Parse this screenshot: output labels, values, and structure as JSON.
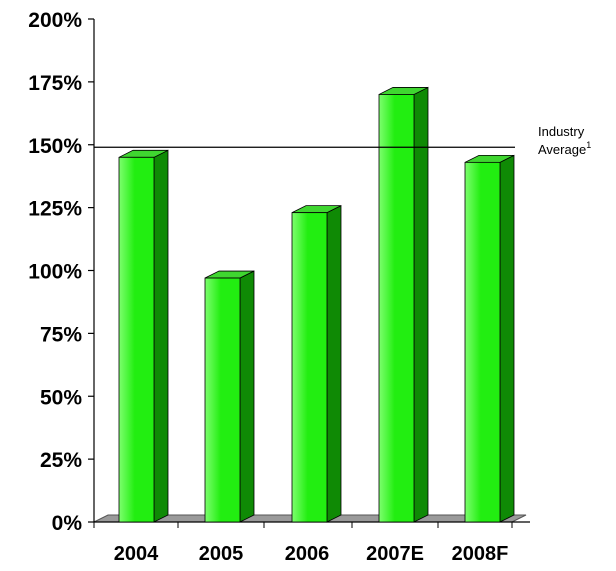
{
  "chart_data": {
    "type": "bar",
    "categories": [
      "2004",
      "2005",
      "2006",
      "2007E",
      "2008F"
    ],
    "values": [
      145,
      97,
      123,
      170,
      143
    ],
    "ylim": [
      0,
      200
    ],
    "yticks": [
      0,
      25,
      50,
      75,
      100,
      125,
      150,
      175,
      200
    ],
    "ytick_labels": [
      "0%",
      "25%",
      "50%",
      "75%",
      "100%",
      "125%",
      "150%",
      "175%",
      "200%"
    ],
    "grid": false,
    "reference_line": {
      "value": 149,
      "label_line1": "Industry",
      "label_line2": "Average",
      "label_sup": "1"
    },
    "colors": {
      "bar_front": "#22ee11",
      "bar_front_light": "#7dff6e",
      "bar_side": "#0f8a05",
      "bar_top": "#3fd630",
      "floor": "#9a9a9a",
      "axis": "#000000"
    }
  }
}
